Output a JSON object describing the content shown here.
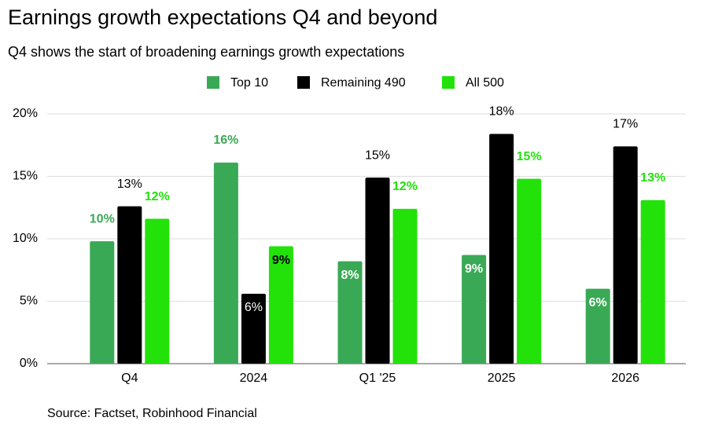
{
  "chart_data": {
    "type": "bar",
    "title": "Earnings growth expectations Q4 and beyond",
    "subtitle": "Q4 shows the start of broadening earnings growth expectations",
    "source": "Source: Factset, Robinhood Financial",
    "categories": [
      "Q4",
      "2024",
      "Q1 '25",
      "2025",
      "2026"
    ],
    "series": [
      {
        "name": "Top 10",
        "color": "#3aa955",
        "values": [
          9.8,
          16.1,
          8.2,
          8.7,
          6.0
        ],
        "value_labels": [
          "10%",
          "16%",
          "8%",
          "9%",
          "6%"
        ]
      },
      {
        "name": "Remaining 490",
        "color": "#000000",
        "values": [
          12.6,
          5.6,
          14.9,
          18.4,
          17.4
        ],
        "value_labels": [
          "13%",
          "6%",
          "15%",
          "18%",
          "17%"
        ]
      },
      {
        "name": "All 500",
        "color": "#22e20a",
        "values": [
          11.6,
          9.4,
          12.4,
          14.8,
          13.1
        ],
        "value_labels": [
          "12%",
          "9%",
          "12%",
          "15%",
          "13%"
        ]
      }
    ],
    "ylim": [
      0,
      20
    ],
    "yticks": [
      {
        "value": 0,
        "label": "0%"
      },
      {
        "value": 5,
        "label": "5%"
      },
      {
        "value": 10,
        "label": "10%"
      },
      {
        "value": 15,
        "label": "15%"
      },
      {
        "value": 20,
        "label": "20%"
      }
    ],
    "grid": true
  }
}
